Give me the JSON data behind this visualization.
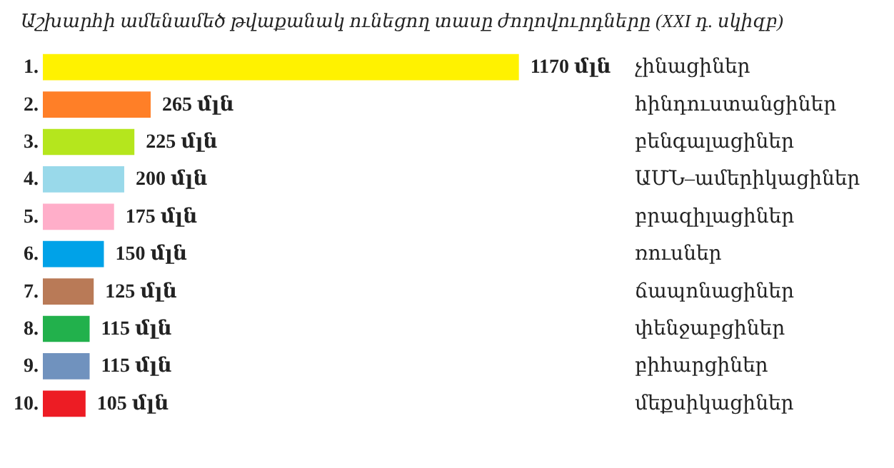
{
  "chart_data": {
    "type": "bar",
    "orientation": "horizontal",
    "title": "Աշխարհի ամենամեծ թվաքանակ ունեցող տասը ժողովուրդները (XXI դ. սկիզբ)",
    "categories": [
      "չինացիներ",
      "հինդուստանցիներ",
      "բենգալացիներ",
      "ԱՄՆ–ամերիկացիներ",
      "բրազիլացիներ",
      "ռուսներ",
      "ճապոնացիներ",
      "փենջաբցիներ",
      "բիհարցիներ",
      "մեքսիկացիներ"
    ],
    "values": [
      1170,
      265,
      225,
      200,
      175,
      150,
      125,
      115,
      115,
      105
    ],
    "value_labels": [
      "1170 մլն",
      "265 մլն",
      "225 մլն",
      "200 մլն",
      "175 մլն",
      "150 մլն",
      "125 մլն",
      "115 մլն",
      "115 մլն",
      "105 մլն"
    ],
    "colors": [
      "#fff200",
      "#ff7f27",
      "#b5e61d",
      "#99d9ea",
      "#ffaec9",
      "#00a2e8",
      "#b97a57",
      "#22b14c",
      "#7092be",
      "#ed1c24"
    ],
    "annotations": [
      "1.",
      "2.",
      "3.",
      "4.",
      "5.",
      "6.",
      "7.",
      "8.",
      "9.",
      "10."
    ],
    "grid": false,
    "legend": false
  }
}
